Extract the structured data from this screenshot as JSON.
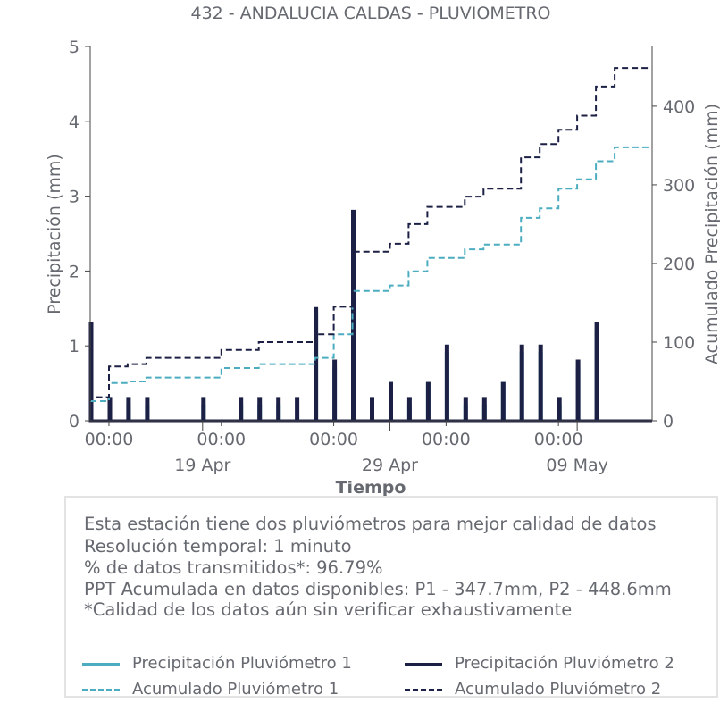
{
  "chart_data": {
    "type": "line",
    "title": "432 - ANDALUCIA CALDAS - PLUVIOMETRO",
    "xlabel": "Tiempo",
    "ylabel": "Precipitación (mm)",
    "ylabel_right": "Acumulado Precipitación (mm)",
    "x_range": [
      "2025-04-13",
      "2025-05-13"
    ],
    "ylim": [
      0,
      5
    ],
    "ylim_right": [
      0,
      476
    ],
    "yticks": [
      "0",
      "1",
      "2",
      "3",
      "4",
      "5"
    ],
    "yticks_right": [
      "0",
      "100",
      "200",
      "300",
      "400"
    ],
    "x_major_ticks": [
      {
        "date": "2025-04-14",
        "label": "00:00"
      },
      {
        "date": "2025-04-20",
        "label": "00:00"
      },
      {
        "date": "2025-04-26",
        "label": "00:00"
      },
      {
        "date": "2025-05-02",
        "label": "00:00"
      },
      {
        "date": "2025-05-08",
        "label": "00:00"
      }
    ],
    "x_minor_ticks": [
      {
        "date": "2025-04-19",
        "label": "19 Apr"
      },
      {
        "date": "2025-04-29",
        "label": "29 Apr"
      },
      {
        "date": "2025-05-09",
        "label": "09 May"
      }
    ],
    "grid": false,
    "legend_position": "bottom",
    "series": [
      {
        "name": "Precipitación Pluviómetro 1",
        "axis": "left",
        "style": "solid",
        "color": "#4cadc0",
        "points": [
          [
            "2025-04-13",
            0.3
          ],
          [
            "2025-04-13",
            1.2
          ],
          [
            "2025-04-14",
            0.2
          ],
          [
            "2025-04-15",
            0.2
          ],
          [
            "2025-04-16",
            0.2
          ],
          [
            "2025-04-19",
            0.2
          ],
          [
            "2025-04-21",
            0.2
          ],
          [
            "2025-04-22",
            0.2
          ],
          [
            "2025-04-23",
            0.2
          ],
          [
            "2025-04-25",
            0.5
          ],
          [
            "2025-04-25",
            1.4
          ],
          [
            "2025-04-26",
            0.7
          ],
          [
            "2025-04-26",
            0.2
          ],
          [
            "2025-04-27",
            1.9
          ],
          [
            "2025-04-27",
            2.6
          ],
          [
            "2025-04-28",
            0.2
          ],
          [
            "2025-04-29",
            0.2
          ],
          [
            "2025-04-29",
            0.5
          ],
          [
            "2025-04-30",
            0.2
          ],
          [
            "2025-05-01",
            0.5
          ],
          [
            "2025-05-02",
            0.2
          ],
          [
            "2025-05-02",
            0.9
          ],
          [
            "2025-05-03",
            0.2
          ],
          [
            "2025-05-04",
            0.2
          ],
          [
            "2025-05-05",
            0.5
          ],
          [
            "2025-05-06",
            0.9
          ],
          [
            "2025-05-06",
            0.2
          ],
          [
            "2025-05-06",
            0.5
          ],
          [
            "2025-05-07",
            0.2
          ],
          [
            "2025-05-07",
            0.9
          ],
          [
            "2025-05-08",
            0.2
          ],
          [
            "2025-05-09",
            0.5
          ],
          [
            "2025-05-09",
            0.7
          ],
          [
            "2025-05-10",
            1.2
          ]
        ]
      },
      {
        "name": "Precipitación Pluviómetro 2",
        "axis": "left",
        "style": "solid",
        "color": "#1c2045",
        "points": [
          [
            "2025-04-13",
            0.5
          ],
          [
            "2025-04-13",
            0.3
          ],
          [
            "2025-04-13",
            1.3
          ],
          [
            "2025-04-14",
            0.3
          ],
          [
            "2025-04-15",
            0.3
          ],
          [
            "2025-04-16",
            0.3
          ],
          [
            "2025-04-19",
            0.3
          ],
          [
            "2025-04-21",
            0.3
          ],
          [
            "2025-04-22",
            0.3
          ],
          [
            "2025-04-23",
            0.3
          ],
          [
            "2025-04-24",
            0.3
          ],
          [
            "2025-04-25",
            0.5
          ],
          [
            "2025-04-25",
            1.5
          ],
          [
            "2025-04-26",
            0.8
          ],
          [
            "2025-04-26",
            0.3
          ],
          [
            "2025-04-27",
            0.3
          ],
          [
            "2025-04-27",
            2.8
          ],
          [
            "2025-04-27",
            2.0
          ],
          [
            "2025-04-28",
            0.3
          ],
          [
            "2025-04-29",
            0.3
          ],
          [
            "2025-04-29",
            0.5
          ],
          [
            "2025-04-30",
            0.3
          ],
          [
            "2025-05-01",
            0.5
          ],
          [
            "2025-05-02",
            0.3
          ],
          [
            "2025-05-02",
            1.0
          ],
          [
            "2025-05-03",
            0.3
          ],
          [
            "2025-05-04",
            0.3
          ],
          [
            "2025-05-05",
            0.5
          ],
          [
            "2025-05-06",
            1.0
          ],
          [
            "2025-05-06",
            0.3
          ],
          [
            "2025-05-07",
            0.3
          ],
          [
            "2025-05-07",
            1.0
          ],
          [
            "2025-05-08",
            0.3
          ],
          [
            "2025-05-09",
            0.5
          ],
          [
            "2025-05-09",
            0.8
          ],
          [
            "2025-05-10",
            1.3
          ]
        ]
      },
      {
        "name": "Acumulado Pluviómetro 1",
        "axis": "right",
        "style": "dashed",
        "color": "#4cadc0",
        "points": [
          [
            "2025-04-13",
            0
          ],
          [
            "2025-04-13",
            25
          ],
          [
            "2025-04-14",
            48
          ],
          [
            "2025-04-15",
            50
          ],
          [
            "2025-04-16",
            55
          ],
          [
            "2025-04-20",
            67
          ],
          [
            "2025-04-22",
            72
          ],
          [
            "2025-04-25",
            80
          ],
          [
            "2025-04-26",
            110
          ],
          [
            "2025-04-27",
            165
          ],
          [
            "2025-04-29",
            172
          ],
          [
            "2025-04-30",
            190
          ],
          [
            "2025-05-01",
            207
          ],
          [
            "2025-05-03",
            218
          ],
          [
            "2025-05-04",
            224
          ],
          [
            "2025-05-06",
            232
          ],
          [
            "2025-05-06",
            258
          ],
          [
            "2025-05-07",
            270
          ],
          [
            "2025-05-08",
            295
          ],
          [
            "2025-05-09",
            307
          ],
          [
            "2025-05-10",
            330
          ],
          [
            "2025-05-11",
            347.7
          ]
        ]
      },
      {
        "name": "Acumulado Pluviómetro 2",
        "axis": "right",
        "style": "dashed",
        "color": "#1c2045",
        "points": [
          [
            "2025-04-13",
            0
          ],
          [
            "2025-04-13",
            30
          ],
          [
            "2025-04-14",
            69
          ],
          [
            "2025-04-15",
            72
          ],
          [
            "2025-04-16",
            80
          ],
          [
            "2025-04-20",
            90
          ],
          [
            "2025-04-22",
            100
          ],
          [
            "2025-04-25",
            110
          ],
          [
            "2025-04-26",
            145
          ],
          [
            "2025-04-27",
            215
          ],
          [
            "2025-04-29",
            225
          ],
          [
            "2025-04-30",
            250
          ],
          [
            "2025-05-01",
            272
          ],
          [
            "2025-05-03",
            285
          ],
          [
            "2025-05-04",
            295
          ],
          [
            "2025-05-06",
            305
          ],
          [
            "2025-05-06",
            335
          ],
          [
            "2025-05-07",
            352
          ],
          [
            "2025-05-08",
            370
          ],
          [
            "2025-05-09",
            388
          ],
          [
            "2025-05-10",
            425
          ],
          [
            "2025-05-11",
            448.6
          ]
        ]
      }
    ]
  },
  "info": {
    "line1": "Esta estación tiene dos pluviómetros para mejor calidad de datos",
    "line2": "Resolución temporal: 1 minuto",
    "line3": "% de datos transmitidos*: 96.79%",
    "line4": "PPT Acumulada en datos disponibles: P1 - 347.7mm, P2 - 448.6mm",
    "line5": "*Calidad de los datos aún sin verificar exhaustivamente"
  },
  "legend": [
    {
      "label": "Precipitación Pluviómetro 1",
      "color": "#4cadc0",
      "style": "solid"
    },
    {
      "label": "Precipitación Pluviómetro 2",
      "color": "#1c2045",
      "style": "solid"
    },
    {
      "label": "Acumulado Pluviómetro 1",
      "color": "#4cadc0",
      "style": "dashed"
    },
    {
      "label": "Acumulado Pluviómetro 2",
      "color": "#1c2045",
      "style": "dashed"
    }
  ]
}
